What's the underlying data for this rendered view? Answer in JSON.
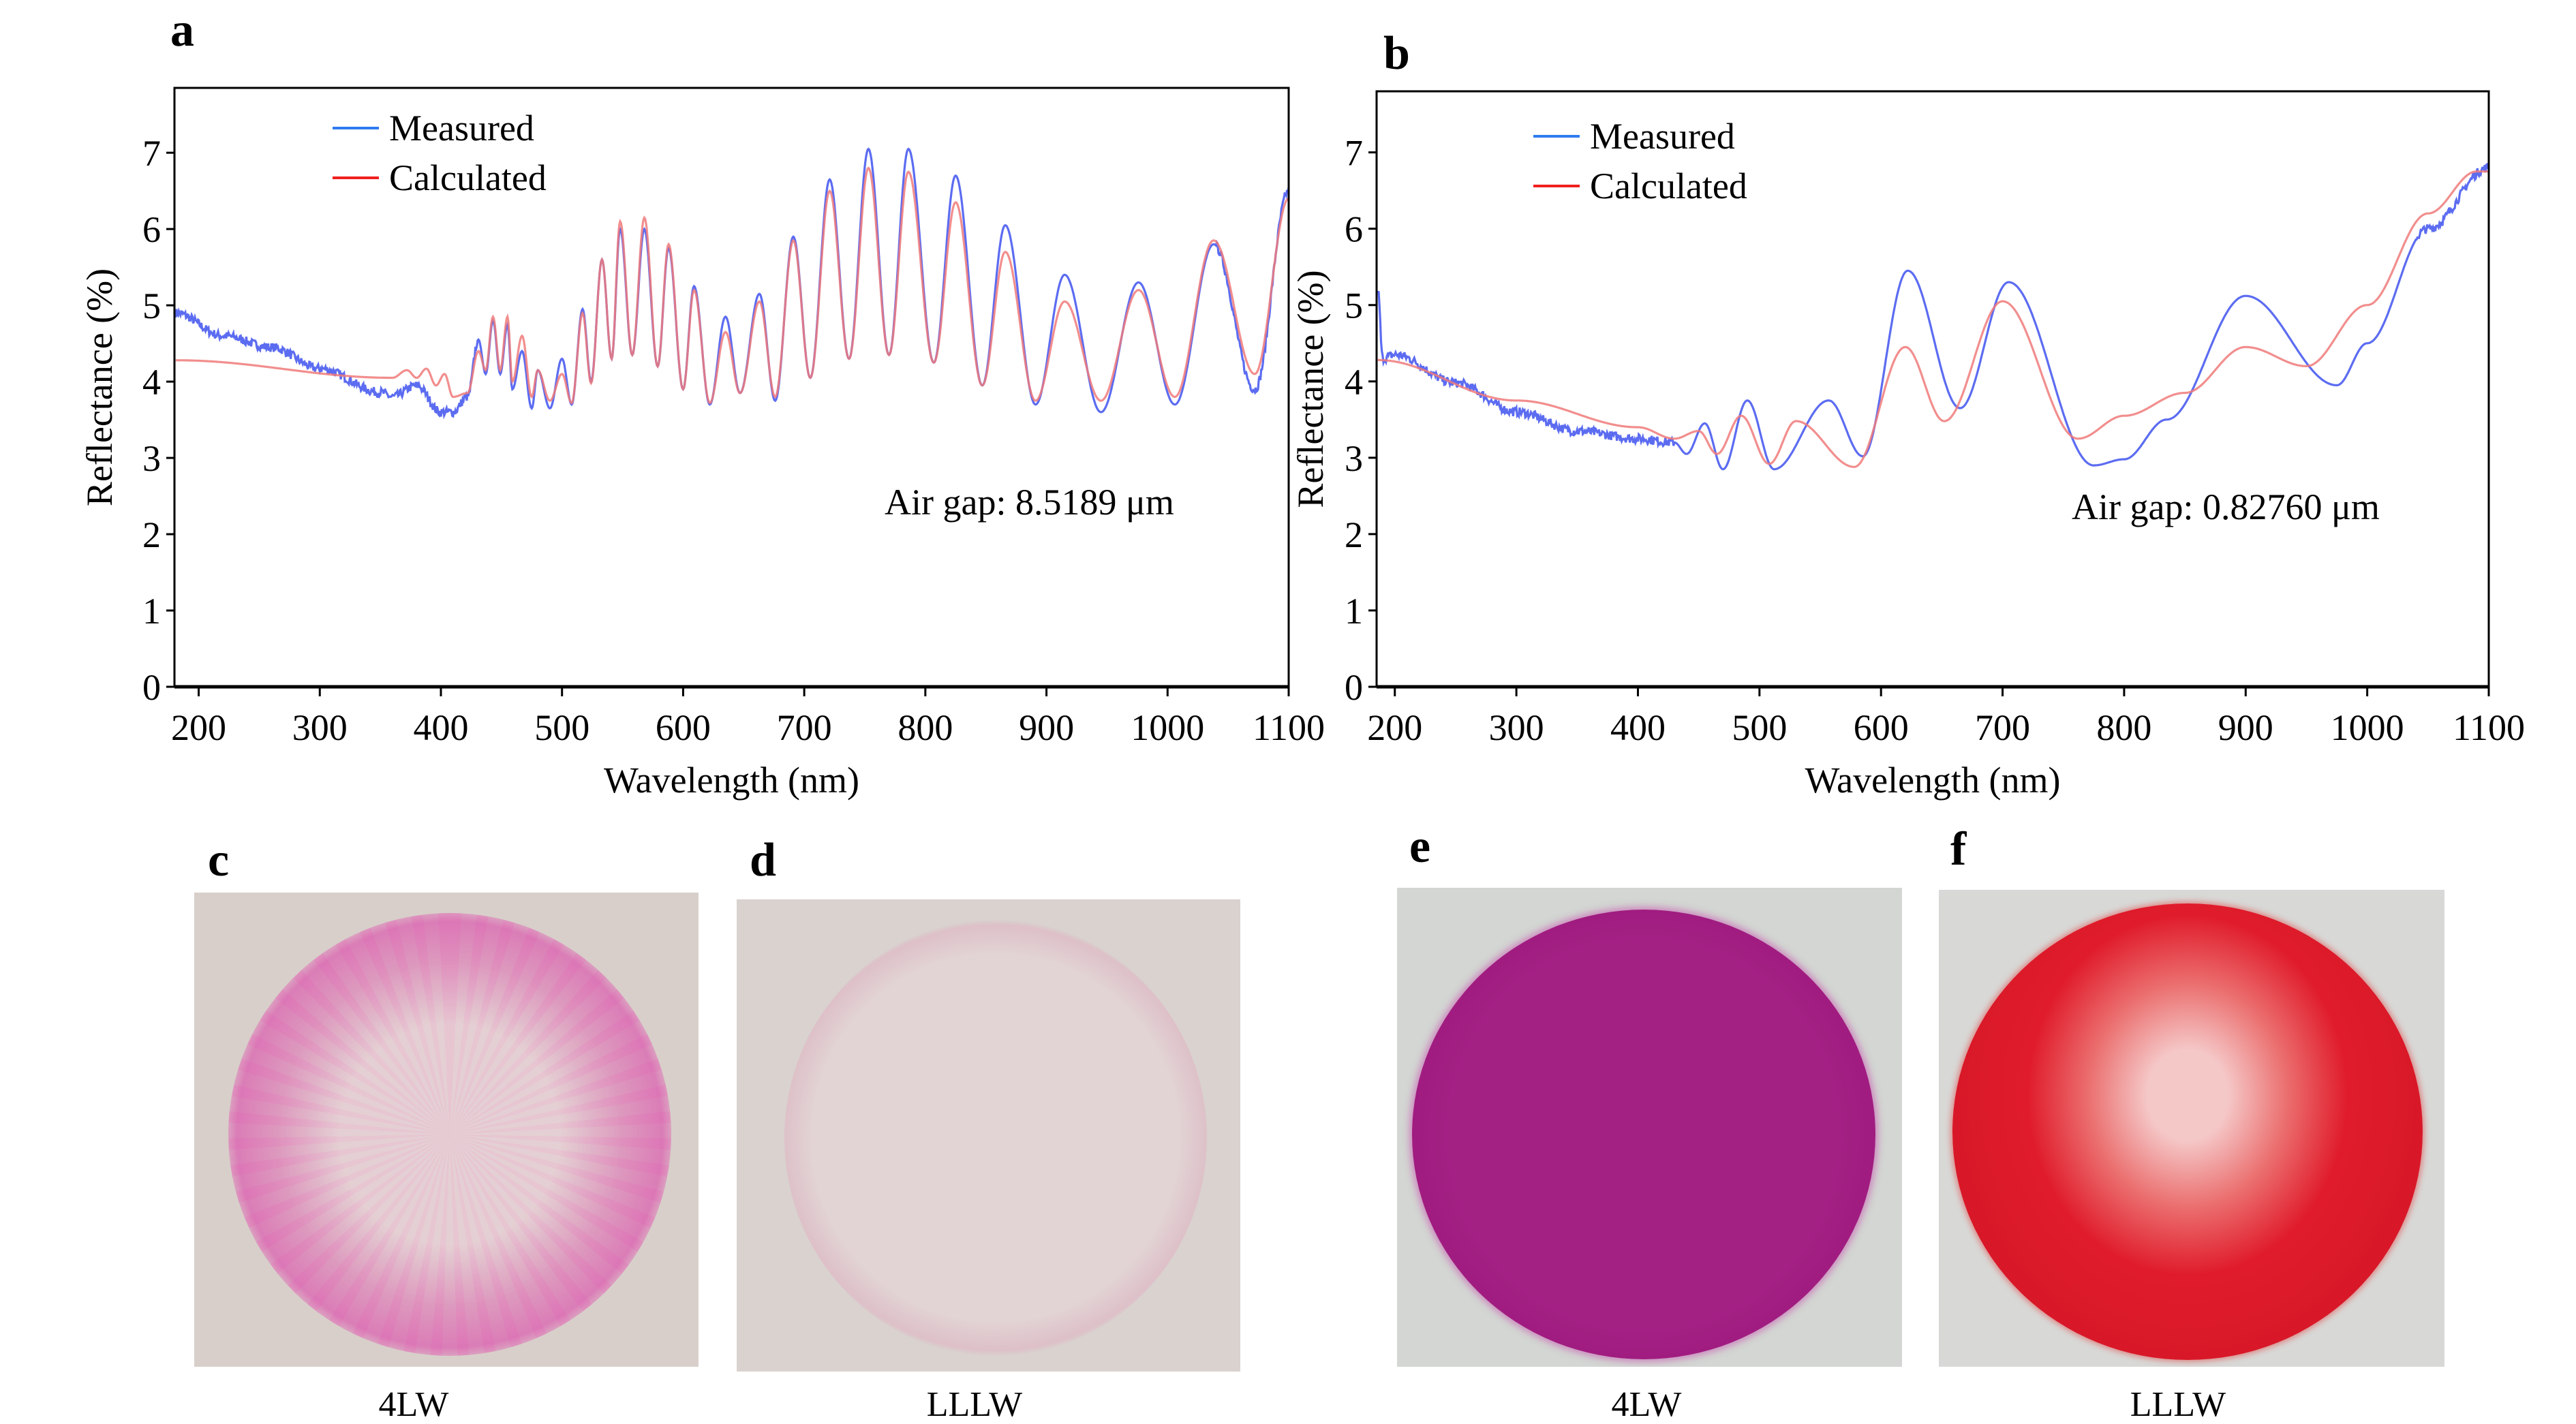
{
  "panels": {
    "a": "a",
    "b": "b",
    "c": "c",
    "d": "d",
    "e": "e",
    "f": "f"
  },
  "photos": [
    {
      "panel": "c",
      "caption": "4LW",
      "background": "#d8cfca",
      "dye": "#e060b0"
    },
    {
      "panel": "d",
      "caption": "LLLW",
      "background": "#d9d2cf",
      "dye": "#e890b8"
    },
    {
      "panel": "e",
      "caption": "4LW",
      "background": "#d3d6d3",
      "dye": "#a51f82"
    },
    {
      "panel": "f",
      "caption": "LLLW",
      "background": "#d8d8d6",
      "dye": "#e01c2c"
    }
  ],
  "chart_data": [
    {
      "type": "line",
      "panel": "a",
      "xlabel": "Wavelength (nm)",
      "ylabel": "Reflectance (%)",
      "xlim": [
        180,
        1100
      ],
      "ylim": [
        0,
        7.85
      ],
      "xticks": [
        200,
        300,
        400,
        500,
        600,
        700,
        800,
        900,
        1000,
        1100
      ],
      "yticks": [
        0,
        1,
        2,
        3,
        4,
        5,
        6,
        7
      ],
      "grid": false,
      "legend_position": "top-left",
      "annotation": "Air gap: 8.5189 μm",
      "series": [
        {
          "name": "Measured",
          "color": "#4a5cf0",
          "legend_color": "#2f7bf0",
          "noisy": true,
          "points": [
            [
              181,
              4.9
            ],
            [
              220,
              4.6
            ],
            [
              260,
              4.45
            ],
            [
              300,
              4.17
            ],
            [
              350,
              3.86
            ],
            [
              360,
              3.8
            ],
            [
              380,
              3.95
            ],
            [
              400,
              3.6
            ],
            [
              410,
              3.6
            ],
            [
              422,
              3.8
            ],
            [
              431,
              4.55
            ],
            [
              437,
              4.1
            ],
            [
              443,
              4.8
            ],
            [
              449,
              4.1
            ],
            [
              455,
              4.75
            ],
            [
              459,
              3.9
            ],
            [
              467,
              4.4
            ],
            [
              475,
              3.65
            ],
            [
              480,
              4.15
            ],
            [
              490,
              3.65
            ],
            [
              500,
              4.3
            ],
            [
              508,
              3.7
            ],
            [
              517,
              4.95
            ],
            [
              524,
              4.0
            ],
            [
              533,
              5.6
            ],
            [
              541,
              4.3
            ],
            [
              548,
              6.0
            ],
            [
              558,
              4.35
            ],
            [
              568,
              6.0
            ],
            [
              579,
              4.2
            ],
            [
              588,
              5.75
            ],
            [
              600,
              3.9
            ],
            [
              609,
              5.25
            ],
            [
              622,
              3.7
            ],
            [
              635,
              4.85
            ],
            [
              647,
              3.85
            ],
            [
              663,
              5.15
            ],
            [
              676,
              3.75
            ],
            [
              691,
              5.9
            ],
            [
              705,
              4.05
            ],
            [
              721,
              6.65
            ],
            [
              737,
              4.3
            ],
            [
              753,
              7.05
            ],
            [
              770,
              4.35
            ],
            [
              786,
              7.05
            ],
            [
              807,
              4.25
            ],
            [
              825,
              6.7
            ],
            [
              847,
              3.95
            ],
            [
              866,
              6.05
            ],
            [
              891,
              3.7
            ],
            [
              915,
              5.4
            ],
            [
              945,
              3.6
            ],
            [
              976,
              5.3
            ],
            [
              1006,
              3.7
            ],
            [
              1038,
              5.8
            ],
            [
              1072,
              3.9
            ],
            [
              1100,
              6.5
            ]
          ]
        },
        {
          "name": "Calculated",
          "color": "#f07a7a",
          "legend_color": "#f02020",
          "noisy": false,
          "points": [
            [
              181,
              4.28
            ],
            [
              360,
              4.05
            ],
            [
              372,
              4.15
            ],
            [
              380,
              4.05
            ],
            [
              388,
              4.17
            ],
            [
              396,
              3.95
            ],
            [
              403,
              4.1
            ],
            [
              410,
              3.8
            ],
            [
              422,
              3.85
            ],
            [
              431,
              4.4
            ],
            [
              437,
              4.15
            ],
            [
              443,
              4.85
            ],
            [
              449,
              4.15
            ],
            [
              455,
              4.85
            ],
            [
              459,
              4.0
            ],
            [
              467,
              4.6
            ],
            [
              475,
              3.8
            ],
            [
              480,
              4.15
            ],
            [
              490,
              3.75
            ],
            [
              500,
              4.1
            ],
            [
              508,
              3.72
            ],
            [
              517,
              4.9
            ],
            [
              524,
              3.98
            ],
            [
              533,
              5.6
            ],
            [
              541,
              4.3
            ],
            [
              548,
              6.1
            ],
            [
              558,
              4.35
            ],
            [
              568,
              6.15
            ],
            [
              579,
              4.2
            ],
            [
              588,
              5.8
            ],
            [
              600,
              3.9
            ],
            [
              609,
              5.2
            ],
            [
              622,
              3.72
            ],
            [
              635,
              4.65
            ],
            [
              647,
              3.85
            ],
            [
              663,
              5.05
            ],
            [
              676,
              3.8
            ],
            [
              691,
              5.85
            ],
            [
              705,
              4.05
            ],
            [
              721,
              6.5
            ],
            [
              737,
              4.3
            ],
            [
              753,
              6.8
            ],
            [
              770,
              4.35
            ],
            [
              786,
              6.75
            ],
            [
              807,
              4.25
            ],
            [
              825,
              6.35
            ],
            [
              847,
              3.95
            ],
            [
              866,
              5.7
            ],
            [
              891,
              3.75
            ],
            [
              915,
              5.05
            ],
            [
              945,
              3.75
            ],
            [
              976,
              5.2
            ],
            [
              1006,
              3.8
            ],
            [
              1038,
              5.85
            ],
            [
              1072,
              4.1
            ],
            [
              1100,
              6.4
            ]
          ]
        }
      ]
    },
    {
      "type": "line",
      "panel": "b",
      "xlabel": "Wavelength (nm)",
      "ylabel": "Reflectance (%)",
      "xlim": [
        185,
        1100
      ],
      "ylim": [
        0,
        7.8
      ],
      "xticks": [
        200,
        300,
        400,
        500,
        600,
        700,
        800,
        900,
        1000,
        1100
      ],
      "yticks": [
        0,
        1,
        2,
        3,
        4,
        5,
        6,
        7
      ],
      "grid": false,
      "legend_position": "top-left",
      "annotation": "Air gap: 0.82760 μm",
      "series": [
        {
          "name": "Measured",
          "color": "#4a5cf0",
          "legend_color": "#2f7bf0",
          "noisy": true,
          "points": [
            [
              186,
              5.2
            ],
            [
              190,
              4.3
            ],
            [
              200,
              4.35
            ],
            [
              250,
              3.98
            ],
            [
              300,
              3.6
            ],
            [
              350,
              3.35
            ],
            [
              400,
              3.25
            ],
            [
              430,
              3.2
            ],
            [
              440,
              3.05
            ],
            [
              455,
              3.45
            ],
            [
              470,
              2.85
            ],
            [
              490,
              3.75
            ],
            [
              512,
              2.85
            ],
            [
              557,
              3.75
            ],
            [
              585,
              3.02
            ],
            [
              622,
              5.45
            ],
            [
              665,
              3.65
            ],
            [
              705,
              5.3
            ],
            [
              775,
              2.9
            ],
            [
              800,
              2.98
            ],
            [
              835,
              3.5
            ],
            [
              900,
              5.12
            ],
            [
              975,
              3.95
            ],
            [
              1000,
              4.5
            ],
            [
              1050,
              6.0
            ],
            [
              1100,
              6.8
            ]
          ]
        },
        {
          "name": "Calculated",
          "color": "#f07a7a",
          "legend_color": "#f02020",
          "noisy": false,
          "points": [
            [
              186,
              4.28
            ],
            [
              300,
              3.75
            ],
            [
              400,
              3.4
            ],
            [
              430,
              3.25
            ],
            [
              450,
              3.35
            ],
            [
              465,
              3.05
            ],
            [
              485,
              3.55
            ],
            [
              508,
              2.92
            ],
            [
              530,
              3.48
            ],
            [
              578,
              2.88
            ],
            [
              620,
              4.45
            ],
            [
              652,
              3.48
            ],
            [
              700,
              5.05
            ],
            [
              762,
              3.25
            ],
            [
              800,
              3.55
            ],
            [
              850,
              3.85
            ],
            [
              900,
              4.45
            ],
            [
              950,
              4.2
            ],
            [
              1000,
              5.0
            ],
            [
              1050,
              6.2
            ],
            [
              1090,
              6.75
            ],
            [
              1100,
              6.75
            ]
          ]
        }
      ]
    }
  ]
}
